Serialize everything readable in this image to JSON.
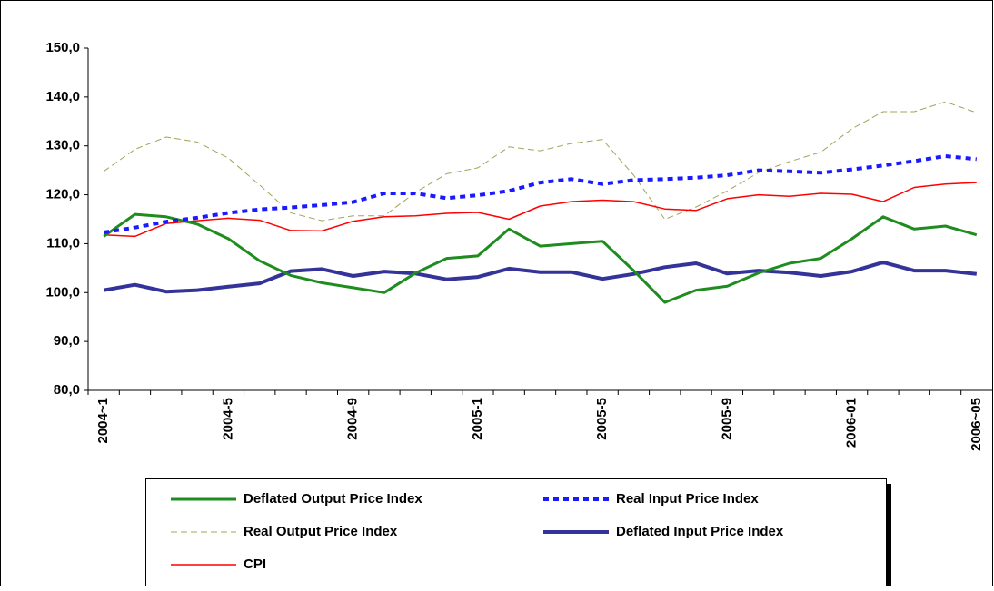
{
  "chart_data": {
    "type": "line",
    "categories": [
      "2004~1",
      null,
      null,
      null,
      "2004-5",
      null,
      null,
      null,
      "2004-9",
      null,
      null,
      null,
      "2005-1",
      null,
      null,
      null,
      "2005-5",
      null,
      null,
      null,
      "2005-9",
      null,
      null,
      null,
      "2006-01",
      null,
      null,
      null,
      "2006~05"
    ],
    "ylim": [
      80,
      150
    ],
    "yticks": [
      {
        "value": 80,
        "label": "80,0"
      },
      {
        "value": 90,
        "label": "90,0"
      },
      {
        "value": 100,
        "label": "100,0"
      },
      {
        "value": 110,
        "label": "110,0"
      },
      {
        "value": 120,
        "label": "120,0"
      },
      {
        "value": 130,
        "label": "130,0"
      },
      {
        "value": 140,
        "label": "140,0"
      },
      {
        "value": 150,
        "label": "150,0"
      }
    ],
    "series": [
      {
        "name": "Deflated Output Price Index",
        "color": "#1e8c1e",
        "style": "solid",
        "width": 3,
        "values": [
          111.5,
          116,
          115.5,
          114,
          111,
          106.5,
          103.5,
          102,
          101,
          100,
          104,
          107,
          107.5,
          113,
          109.5,
          110,
          110.5,
          104.5,
          98,
          100.5,
          101.3,
          104,
          106,
          107,
          111,
          115.5,
          113,
          113.6,
          111.8
        ]
      },
      {
        "name": "Real Input Price Index",
        "color": "#1a1aff",
        "style": "dotted",
        "width": 4,
        "values": [
          112.3,
          113.3,
          114.5,
          115.3,
          116.3,
          117,
          117.4,
          117.9,
          118.5,
          120.3,
          120.3,
          119.3,
          119.9,
          120.8,
          122.5,
          123.2,
          122.2,
          123,
          123.2,
          123.5,
          124,
          125,
          124.8,
          124.5,
          125.2,
          126,
          126.9,
          127.9,
          127.3
        ]
      },
      {
        "name": "Real Output Price Index",
        "color": "#a3a35a",
        "style": "dashed",
        "width": 1,
        "values": [
          124.8,
          129.3,
          131.8,
          130.8,
          127.5,
          122,
          116.3,
          114.7,
          115.7,
          115.7,
          120.5,
          124.3,
          125.5,
          129.8,
          129,
          130.5,
          131.3,
          124,
          115,
          117.5,
          120.8,
          124.5,
          126.8,
          128.7,
          133.5,
          137,
          137,
          139,
          136.8
        ]
      },
      {
        "name": "Deflated Input Price Index",
        "color": "#333399",
        "style": "solid",
        "width": 4,
        "values": [
          100.5,
          101.6,
          100.2,
          100.5,
          101.2,
          101.9,
          104.4,
          104.8,
          103.4,
          104.3,
          103.9,
          102.7,
          103.2,
          104.9,
          104.2,
          104.2,
          102.8,
          103.8,
          105.2,
          106,
          103.9,
          104.5,
          104.1,
          103.4,
          104.3,
          106.2,
          104.5,
          104.5,
          103.8
        ]
      },
      {
        "name": "CPI",
        "color": "#ff0000",
        "style": "solid",
        "width": 1.5,
        "values": [
          111.8,
          111.5,
          114.1,
          114.7,
          115.2,
          114.8,
          112.7,
          112.6,
          114.6,
          115.5,
          115.7,
          116.2,
          116.4,
          115,
          117.7,
          118.6,
          118.9,
          118.6,
          117.1,
          116.8,
          119.2,
          120,
          119.7,
          120.3,
          120.1,
          118.6,
          121.5,
          122.2,
          122.5
        ]
      }
    ]
  }
}
